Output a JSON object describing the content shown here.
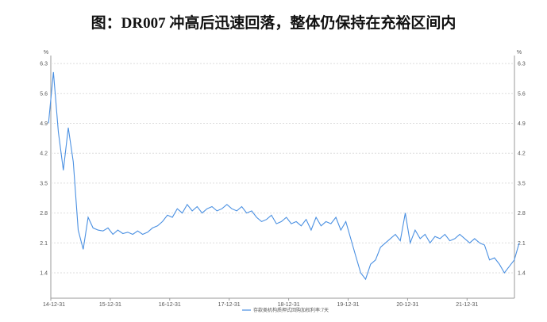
{
  "title": "图：DR007 冲高后迅速回落，整体仍保持在充裕区间内",
  "chart_data": {
    "type": "line",
    "title": "图：DR007 冲高后迅速回落，整体仍保持在充裕区间内",
    "ylabel_left": "%",
    "ylabel_right": "%",
    "ylim": [
      0.8,
      6.4
    ],
    "yticks": [
      "1.4",
      "2.1",
      "2.8",
      "3.5",
      "4.2",
      "4.9",
      "5.6",
      "6.3"
    ],
    "xticks": [
      "14-12-31",
      "15-12-31",
      "16-12-31",
      "17-12-31",
      "18-12-31",
      "19-12-31",
      "20-12-31",
      "21-12-31"
    ],
    "grid": "horizontal-dotted",
    "legend_position": "bottom",
    "series": [
      {
        "name": "存款类机构质押式回购加权利率:7天",
        "color": "#4a90e2",
        "x": [
          "2014-12",
          "2015-01",
          "2015-02",
          "2015-03",
          "2015-04",
          "2015-05",
          "2015-06",
          "2015-07",
          "2015-08",
          "2015-09",
          "2015-10",
          "2015-11",
          "2015-12",
          "2016-01",
          "2016-02",
          "2016-03",
          "2016-04",
          "2016-05",
          "2016-06",
          "2016-07",
          "2016-08",
          "2016-09",
          "2016-10",
          "2016-11",
          "2016-12",
          "2017-01",
          "2017-02",
          "2017-03",
          "2017-04",
          "2017-05",
          "2017-06",
          "2017-07",
          "2017-08",
          "2017-09",
          "2017-10",
          "2017-11",
          "2017-12",
          "2018-01",
          "2018-02",
          "2018-03",
          "2018-04",
          "2018-05",
          "2018-06",
          "2018-07",
          "2018-08",
          "2018-09",
          "2018-10",
          "2018-11",
          "2018-12",
          "2019-01",
          "2019-02",
          "2019-03",
          "2019-04",
          "2019-05",
          "2019-06",
          "2019-07",
          "2019-08",
          "2019-09",
          "2019-10",
          "2019-11",
          "2019-12",
          "2020-01",
          "2020-02",
          "2020-03",
          "2020-04",
          "2020-05",
          "2020-06",
          "2020-07",
          "2020-08",
          "2020-09",
          "2020-10",
          "2020-11",
          "2020-12",
          "2021-01",
          "2021-02",
          "2021-03",
          "2021-04",
          "2021-05",
          "2021-06",
          "2021-07",
          "2021-08",
          "2021-09",
          "2021-10",
          "2021-11",
          "2021-12",
          "2022-01",
          "2022-02",
          "2022-03",
          "2022-04",
          "2022-05",
          "2022-06",
          "2022-07",
          "2022-08",
          "2022-09",
          "2022-10",
          "2022-11"
        ],
        "values": [
          4.9,
          6.1,
          4.7,
          3.8,
          4.8,
          4.0,
          2.4,
          1.95,
          2.7,
          2.45,
          2.4,
          2.38,
          2.45,
          2.3,
          2.4,
          2.32,
          2.35,
          2.3,
          2.38,
          2.3,
          2.35,
          2.45,
          2.5,
          2.6,
          2.75,
          2.7,
          2.9,
          2.8,
          3.0,
          2.85,
          2.95,
          2.8,
          2.9,
          2.95,
          2.85,
          2.9,
          3.0,
          2.9,
          2.85,
          2.95,
          2.8,
          2.85,
          2.7,
          2.6,
          2.65,
          2.75,
          2.55,
          2.6,
          2.7,
          2.55,
          2.6,
          2.5,
          2.65,
          2.4,
          2.7,
          2.5,
          2.6,
          2.55,
          2.7,
          2.4,
          2.6,
          2.2,
          1.8,
          1.4,
          1.25,
          1.6,
          1.7,
          2.0,
          2.1,
          2.2,
          2.3,
          2.15,
          2.8,
          2.1,
          2.4,
          2.2,
          2.3,
          2.1,
          2.25,
          2.2,
          2.3,
          2.15,
          2.2,
          2.3,
          2.2,
          2.1,
          2.2,
          2.1,
          2.05,
          1.7,
          1.75,
          1.6,
          1.4,
          1.55,
          1.7,
          2.1
        ]
      }
    ]
  }
}
